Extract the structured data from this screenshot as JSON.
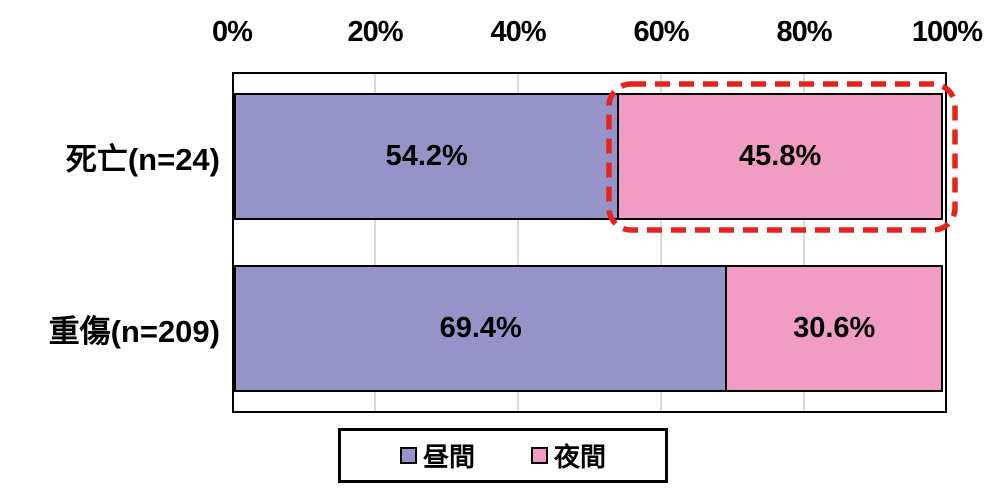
{
  "chart_data": {
    "type": "bar",
    "orientation": "horizontal",
    "stacked": true,
    "title": "",
    "categories": [
      "死亡(n=24)",
      "重傷(n=209)"
    ],
    "series": [
      {
        "name": "昼間",
        "color": "#9593C8",
        "values": [
          54.2,
          69.4
        ]
      },
      {
        "name": "夜間",
        "color": "#F09CC3",
        "values": [
          45.8,
          30.6
        ]
      }
    ],
    "data_labels": [
      [
        "54.2%",
        "45.8%"
      ],
      [
        "69.4%",
        "30.6%"
      ]
    ],
    "x_axis": {
      "position": "top",
      "range": [
        0,
        100
      ],
      "ticks": [
        "0%",
        "20%",
        "40%",
        "60%",
        "80%",
        "100%"
      ]
    },
    "legend": {
      "position": "bottom",
      "entries": [
        {
          "label": "昼間",
          "color": "#9593C8"
        },
        {
          "label": "夜間",
          "color": "#F09CC3"
        }
      ]
    },
    "grid": {
      "visible": true,
      "color": "#D9D9D9"
    },
    "annotation": {
      "type": "dashed-outline-box",
      "color": "#E8231E",
      "highlights": "夜間 45.8% segment of 死亡(n=24) row"
    }
  },
  "colors": {
    "background": "#FFFFFF",
    "plot_border": "#000000",
    "segment_border": "#000000",
    "text": "#000000"
  }
}
